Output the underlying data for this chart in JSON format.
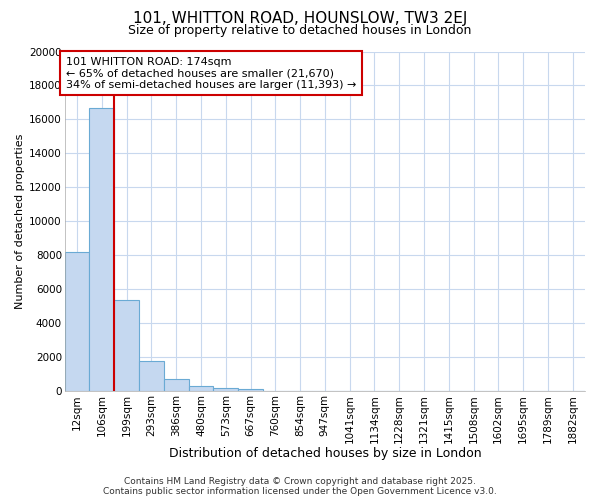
{
  "title": "101, WHITTON ROAD, HOUNSLOW, TW3 2EJ",
  "subtitle": "Size of property relative to detached houses in London",
  "xlabel": "Distribution of detached houses by size in London",
  "ylabel": "Number of detached properties",
  "bin_labels": [
    "12sqm",
    "106sqm",
    "199sqm",
    "293sqm",
    "386sqm",
    "480sqm",
    "573sqm",
    "667sqm",
    "760sqm",
    "854sqm",
    "947sqm",
    "1041sqm",
    "1134sqm",
    "1228sqm",
    "1321sqm",
    "1415sqm",
    "1508sqm",
    "1602sqm",
    "1695sqm",
    "1789sqm",
    "1882sqm"
  ],
  "bar_values": [
    8200,
    16700,
    5400,
    1800,
    750,
    320,
    200,
    150,
    0,
    0,
    0,
    0,
    0,
    0,
    0,
    0,
    0,
    0,
    0,
    0,
    0
  ],
  "bar_color": "#c5d8f0",
  "bar_edge_color": "#6aaad4",
  "vline_color": "#cc0000",
  "vline_x": 2.0,
  "annotation_text": "101 WHITTON ROAD: 174sqm\n← 65% of detached houses are smaller (21,670)\n34% of semi-detached houses are larger (11,393) →",
  "annotation_box_edgecolor": "#cc0000",
  "ylim_max": 20000,
  "yticks": [
    0,
    2000,
    4000,
    6000,
    8000,
    10000,
    12000,
    14000,
    16000,
    18000,
    20000
  ],
  "footer_text": "Contains HM Land Registry data © Crown copyright and database right 2025.\nContains public sector information licensed under the Open Government Licence v3.0.",
  "fig_bg_color": "#ffffff",
  "plot_bg_color": "#ffffff",
  "grid_color": "#c8d8ee",
  "title_fontsize": 11,
  "subtitle_fontsize": 9,
  "xlabel_fontsize": 9,
  "ylabel_fontsize": 8,
  "tick_fontsize": 7.5,
  "annot_fontsize": 8,
  "footer_fontsize": 6.5
}
